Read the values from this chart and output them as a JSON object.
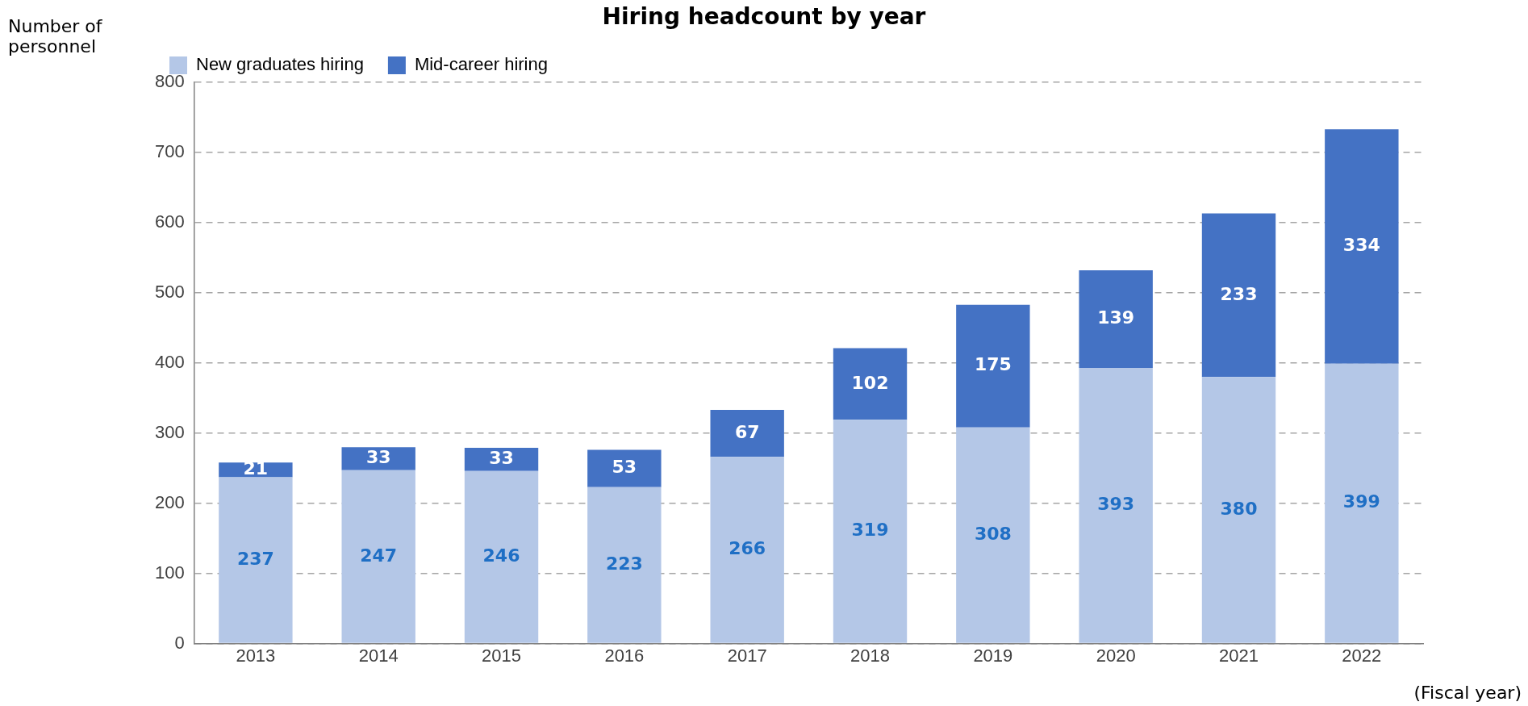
{
  "chart_data": {
    "type": "bar",
    "title": "Hiring headcount by year",
    "xlabel": "(Fiscal year)",
    "ylabel": "Number of personnel",
    "categories": [
      "2013",
      "2014",
      "2015",
      "2016",
      "2017",
      "2018",
      "2019",
      "2020",
      "2021",
      "2022"
    ],
    "series": [
      {
        "name": "New graduates hiring",
        "color": "#b4c7e7",
        "values": [
          237,
          247,
          246,
          223,
          266,
          319,
          308,
          393,
          380,
          399
        ]
      },
      {
        "name": "Mid-career hiring",
        "color": "#4472c4",
        "values": [
          21,
          33,
          33,
          53,
          67,
          102,
          175,
          139,
          233,
          334
        ]
      }
    ],
    "stacked": true,
    "data_labels": true,
    "ylim": [
      0,
      800
    ],
    "yticks": [
      0,
      100,
      200,
      300,
      400,
      500,
      600,
      700,
      800
    ],
    "grid": "y",
    "legend": "top left"
  }
}
